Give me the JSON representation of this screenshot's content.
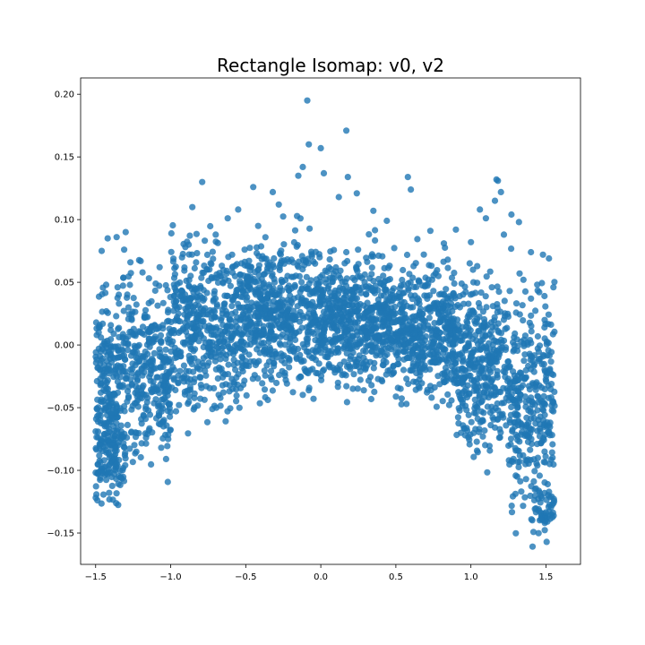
{
  "chart_data": {
    "type": "scatter",
    "title": "Rectangle Isomap: v0, v2",
    "xlabel": "",
    "ylabel": "",
    "xlim": [
      -1.6,
      1.73
    ],
    "ylim": [
      -0.175,
      0.213
    ],
    "xticks": [
      -1.5,
      -1.0,
      -0.5,
      0.0,
      0.5,
      1.0,
      1.5
    ],
    "xtick_labels": [
      "−1.5",
      "−1.0",
      "−0.5",
      "0.0",
      "0.5",
      "1.0",
      "1.5"
    ],
    "yticks": [
      -0.15,
      -0.1,
      -0.05,
      0.0,
      0.05,
      0.1,
      0.15,
      0.2
    ],
    "ytick_labels": [
      "−0.15",
      "−0.10",
      "−0.05",
      "0.00",
      "0.05",
      "0.10",
      "0.15",
      "0.20"
    ],
    "grid": false,
    "marker_color": "#1f77b4",
    "marker_alpha": 0.8,
    "series": [
      {
        "points": [
          [
            -0.09,
            0.195
          ],
          [
            0.17,
            0.171
          ],
          [
            -0.08,
            0.16
          ],
          [
            0.0,
            0.157
          ],
          [
            -0.12,
            0.142
          ],
          [
            -0.15,
            0.135
          ],
          [
            0.02,
            0.137
          ],
          [
            0.18,
            0.134
          ],
          [
            0.58,
            0.134
          ],
          [
            0.6,
            0.124
          ],
          [
            1.17,
            0.132
          ],
          [
            1.18,
            0.131
          ],
          [
            -0.79,
            0.13
          ],
          [
            -0.45,
            0.126
          ],
          [
            -0.32,
            0.122
          ],
          [
            0.24,
            0.121
          ],
          [
            1.2,
            0.122
          ],
          [
            1.16,
            0.115
          ],
          [
            1.06,
            0.108
          ],
          [
            1.1,
            0.101
          ],
          [
            0.9,
            0.092
          ],
          [
            1.32,
            0.098
          ],
          [
            1.27,
            0.104
          ],
          [
            1.22,
            0.088
          ],
          [
            -0.55,
            0.108
          ],
          [
            -0.62,
            0.101
          ],
          [
            -0.28,
            0.112
          ],
          [
            0.12,
            0.118
          ],
          [
            0.35,
            0.107
          ],
          [
            0.44,
            0.099
          ],
          [
            0.73,
            0.091
          ],
          [
            0.82,
            0.081
          ],
          [
            1.0,
            0.082
          ],
          [
            -1.3,
            0.09
          ],
          [
            -1.36,
            0.086
          ],
          [
            -1.42,
            0.085
          ],
          [
            -1.46,
            0.075
          ],
          [
            -1.31,
            0.076
          ],
          [
            -0.88,
            0.08
          ],
          [
            -0.7,
            0.088
          ],
          [
            1.4,
            0.074
          ],
          [
            1.48,
            0.072
          ],
          [
            1.52,
            0.069
          ],
          [
            1.55,
            0.046
          ],
          [
            1.49,
            0.039
          ],
          [
            1.4,
            0.037
          ],
          [
            1.35,
            0.052
          ]
        ],
        "regions": [
          {
            "x": [
              -1.5,
              -1.35
            ],
            "y_center": -0.04,
            "y_spread": 0.075,
            "n": 220
          },
          {
            "x": [
              -1.5,
              -1.3
            ],
            "y_center": -0.09,
            "y_spread": 0.03,
            "n": 90
          },
          {
            "x": [
              -1.35,
              -1.0
            ],
            "y_center": -0.02,
            "y_spread": 0.07,
            "n": 360
          },
          {
            "x": [
              -1.0,
              -0.5
            ],
            "y_center": 0.015,
            "y_spread": 0.065,
            "n": 520
          },
          {
            "x": [
              -0.5,
              0.0
            ],
            "y_center": 0.025,
            "y_spread": 0.055,
            "n": 560
          },
          {
            "x": [
              0.0,
              0.5
            ],
            "y_center": 0.02,
            "y_spread": 0.05,
            "n": 600
          },
          {
            "x": [
              0.5,
              0.9
            ],
            "y_center": 0.01,
            "y_spread": 0.05,
            "n": 460
          },
          {
            "x": [
              0.9,
              1.25
            ],
            "y_center": -0.015,
            "y_spread": 0.065,
            "n": 380
          },
          {
            "x": [
              1.25,
              1.56
            ],
            "y_center": -0.04,
            "y_spread": 0.08,
            "n": 320
          },
          {
            "x": [
              1.4,
              1.56
            ],
            "y_center": -0.13,
            "y_spread": 0.025,
            "n": 60
          }
        ]
      }
    ]
  }
}
